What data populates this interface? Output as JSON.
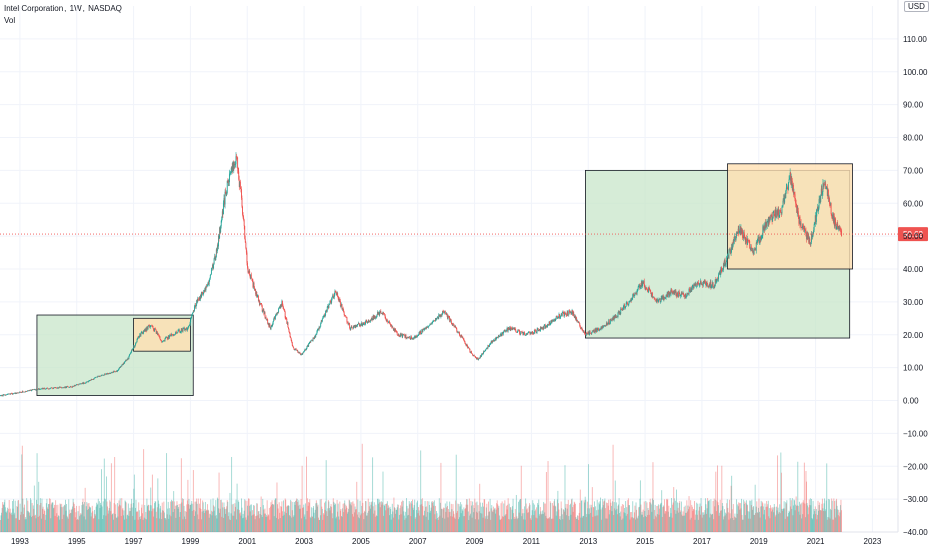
{
  "header": {
    "symbol": "Intel Corporation",
    "interval": "1W",
    "exchange": "NASDAQ",
    "indicator": "Vol",
    "currency": "USD"
  },
  "colors": {
    "up": "#26a69a",
    "down": "#ef5350",
    "green_box": "#c8e6c9",
    "orange_box": "#ffe0b2",
    "price_line": "#ef5350",
    "grid": "#f0f3fa"
  },
  "chart_data": {
    "type": "candlestick",
    "title": "Intel Corporation, 1W, NASDAQ",
    "last_price": 50.62,
    "xlim": [
      1992.3,
      2023.9
    ],
    "ylim": [
      -40,
      120
    ],
    "x_ticks": [
      {
        "x": 1993,
        "label": "1993"
      },
      {
        "x": 1995,
        "label": "1995"
      },
      {
        "x": 1997,
        "label": "1997"
      },
      {
        "x": 1999,
        "label": "1999"
      },
      {
        "x": 2001,
        "label": "2001"
      },
      {
        "x": 2003,
        "label": "2003"
      },
      {
        "x": 2005,
        "label": "2005"
      },
      {
        "x": 2007,
        "label": "2007"
      },
      {
        "x": 2009,
        "label": "2009"
      },
      {
        "x": 2011,
        "label": "2011"
      },
      {
        "x": 2013,
        "label": "2013"
      },
      {
        "x": 2015,
        "label": "2015"
      },
      {
        "x": 2017,
        "label": "2017"
      },
      {
        "x": 2019,
        "label": "2019"
      },
      {
        "x": 2021,
        "label": "2021"
      },
      {
        "x": 2023,
        "label": "2023"
      }
    ],
    "y_ticks": [
      {
        "y": 110,
        "label": "110.00"
      },
      {
        "y": 100,
        "label": "100.00"
      },
      {
        "y": 90,
        "label": "90.00"
      },
      {
        "y": 80,
        "label": "80.00"
      },
      {
        "y": 70,
        "label": "70.00"
      },
      {
        "y": 60,
        "label": "60.00"
      },
      {
        "y": 50,
        "label": "50.00"
      },
      {
        "y": 40,
        "label": "40.00"
      },
      {
        "y": 30,
        "label": "30.00"
      },
      {
        "y": 20,
        "label": "20.00"
      },
      {
        "y": 10,
        "label": "10.00"
      },
      {
        "y": 0,
        "label": "0.00"
      },
      {
        "y": -10,
        "label": "−10.00"
      },
      {
        "y": -20,
        "label": "−20.00"
      },
      {
        "y": -30,
        "label": "−30.00"
      },
      {
        "y": -40,
        "label": "−40.00"
      }
    ],
    "price_path": [
      [
        1992.3,
        1.5
      ],
      [
        1993.0,
        2.5
      ],
      [
        1993.6,
        3.5
      ],
      [
        1994.2,
        3.8
      ],
      [
        1994.8,
        4.2
      ],
      [
        1995.3,
        5.5
      ],
      [
        1995.8,
        7.5
      ],
      [
        1996.4,
        9.0
      ],
      [
        1996.8,
        13.0
      ],
      [
        1997.2,
        20.0
      ],
      [
        1997.6,
        23.0
      ],
      [
        1998.0,
        18.0
      ],
      [
        1998.5,
        21.0
      ],
      [
        1998.9,
        22.0
      ],
      [
        1999.2,
        30.0
      ],
      [
        1999.6,
        35.0
      ],
      [
        1999.9,
        45.0
      ],
      [
        2000.2,
        62.0
      ],
      [
        2000.4,
        70.0
      ],
      [
        2000.6,
        74.0
      ],
      [
        2000.8,
        60.0
      ],
      [
        2001.0,
        40.0
      ],
      [
        2001.4,
        30.0
      ],
      [
        2001.8,
        22.0
      ],
      [
        2002.2,
        30.0
      ],
      [
        2002.6,
        16.0
      ],
      [
        2002.9,
        14.0
      ],
      [
        2003.4,
        20.0
      ],
      [
        2003.9,
        30.0
      ],
      [
        2004.1,
        33.0
      ],
      [
        2004.6,
        22.0
      ],
      [
        2005.2,
        24.0
      ],
      [
        2005.7,
        27.0
      ],
      [
        2006.3,
        20.0
      ],
      [
        2006.8,
        19.0
      ],
      [
        2007.3,
        22.0
      ],
      [
        2007.9,
        27.0
      ],
      [
        2008.4,
        21.0
      ],
      [
        2008.9,
        14.0
      ],
      [
        2009.1,
        12.5
      ],
      [
        2009.6,
        18.0
      ],
      [
        2010.2,
        22.0
      ],
      [
        2010.8,
        20.0
      ],
      [
        2011.4,
        22.0
      ],
      [
        2012.0,
        26.0
      ],
      [
        2012.4,
        27.0
      ],
      [
        2012.9,
        20.0
      ],
      [
        2013.4,
        22.0
      ],
      [
        2013.9,
        25.0
      ],
      [
        2014.4,
        30.0
      ],
      [
        2014.9,
        36.0
      ],
      [
        2015.4,
        30.0
      ],
      [
        2015.9,
        33.0
      ],
      [
        2016.4,
        32.0
      ],
      [
        2016.9,
        36.0
      ],
      [
        2017.4,
        35.0
      ],
      [
        2017.8,
        42.0
      ],
      [
        2018.3,
        52.0
      ],
      [
        2018.8,
        45.0
      ],
      [
        2019.3,
        55.0
      ],
      [
        2019.8,
        58.0
      ],
      [
        2020.1,
        68.0
      ],
      [
        2020.4,
        55.0
      ],
      [
        2020.8,
        48.0
      ],
      [
        2021.1,
        60.0
      ],
      [
        2021.3,
        67.0
      ],
      [
        2021.6,
        55.0
      ],
      [
        2021.9,
        50.6
      ]
    ],
    "rectangles": [
      {
        "name": "green-box-1990s",
        "x1": 1993.6,
        "x2": 1999.1,
        "y1": 1.5,
        "y2": 26.0,
        "color": "green"
      },
      {
        "name": "orange-box-1990s",
        "x1": 1997.0,
        "x2": 1999.0,
        "y1": 15.0,
        "y2": 25.0,
        "color": "orange"
      },
      {
        "name": "green-box-2010s",
        "x1": 2012.9,
        "x2": 2022.2,
        "y1": 19.0,
        "y2": 70.0,
        "color": "green"
      },
      {
        "name": "orange-box-2010s",
        "x1": 2017.9,
        "x2": 2022.3,
        "y1": 40.0,
        "y2": 72.0,
        "color": "orange"
      }
    ]
  }
}
